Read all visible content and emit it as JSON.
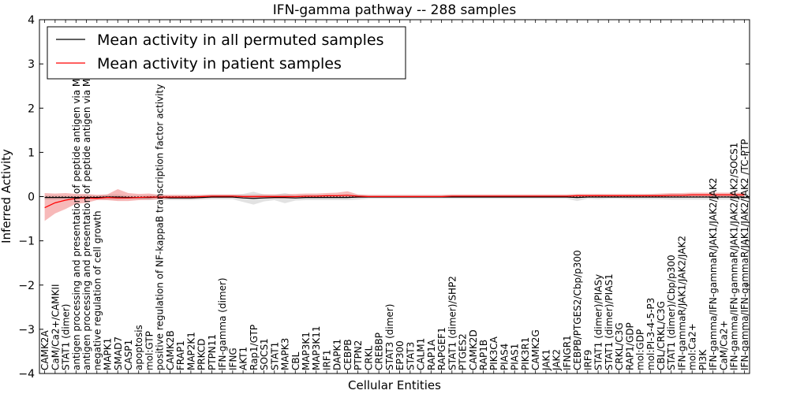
{
  "chart_data": {
    "type": "line",
    "title": "IFN-gamma pathway -- 288 samples",
    "xlabel": "Cellular Entities",
    "ylabel": "Inferred Activity",
    "ylim": [
      -4,
      4
    ],
    "yticks": [
      -4,
      -3,
      -2,
      -1,
      0,
      1,
      2,
      3,
      4
    ],
    "legend_position": "top-left",
    "categories": [
      "CAMK2A",
      "CaM/Ca2+/CAMKII",
      "STAT1 (dimer)",
      "antigen processing and presentation of peptide antigen via MHC class I",
      "antigen processing and presentation of peptide antigen via MHC class II",
      "negative regulation of cell growth",
      "MAPK1",
      "SMAD7",
      "CASP1",
      "apoptosis",
      "mol:GTP",
      "positive regulation of NF-kappaB transcription factor activity",
      "CAMK2B",
      "FRAP1",
      "MAP2K1",
      "PRKCD",
      "PTPN11",
      "IFN-gamma (dimer)",
      "IFNG",
      "AKT1",
      "Rap1/GTP",
      "SOCS1",
      "STAT1",
      "MAPK3",
      "CBL",
      "MAP3K1",
      "MAP3K11",
      "IRF1",
      "DAPK1",
      "CEBPB",
      "PTPN2",
      "CRKL",
      "CREBBP",
      "STAT3 (dimer)",
      "EP300",
      "STAT3",
      "CALM1",
      "RAP1A",
      "RAPGEF1",
      "STAT1 (dimer)/SHP2",
      "PTGES2",
      "CAMK2D",
      "RAP1B",
      "PIK3CA",
      "PIAS4",
      "PIAS1",
      "PIK3R1",
      "CAMK2G",
      "JAK1",
      "JAK2",
      "IFNGR1",
      "CEBPB/PTGES2/Cbp/p300",
      "IRF9",
      "STAT1 (dimer)/PIASy",
      "STAT1 (dimer)/PIAS1",
      "CRKL/C3G",
      "RAP1/GDP",
      "mol:GDP",
      "mol:PI-3-4-5-P3",
      "CBL/CRKL/C3G",
      "STAT1 (dimer)/Cbp/p300",
      "IFN-gammaR/JAK1/JAK2/JAK2",
      "mol:Ca2+",
      "PI3K",
      "IFN-gamma/IFN-gammaR/JAK1/JAK2/JAK2",
      "CaM/Ca2+",
      "IFN-gamma/IFN-gammaR/JAK1/JAK2/JAK2/SOCS1",
      "IFN-gamma/IFN-gammaR/JAK1/JAK2/JAK2 /TC-PTP"
    ],
    "series": [
      {
        "name": "Mean activity in all permuted samples",
        "color": "#000000",
        "values": [
          -0.02,
          -0.02,
          -0.02,
          -0.02,
          -0.02,
          -0.02,
          -0.01,
          -0.01,
          -0.02,
          -0.02,
          -0.02,
          -0.01,
          -0.03,
          -0.03,
          -0.03,
          -0.02,
          -0.01,
          -0.01,
          -0.01,
          -0.03,
          -0.04,
          -0.03,
          -0.02,
          -0.02,
          -0.03,
          -0.02,
          -0.02,
          -0.02,
          -0.02,
          -0.02,
          -0.01,
          -0.01,
          -0.01,
          -0.01,
          -0.01,
          -0.01,
          -0.01,
          -0.01,
          -0.01,
          -0.01,
          -0.01,
          -0.01,
          -0.01,
          -0.01,
          -0.01,
          -0.01,
          -0.01,
          -0.01,
          -0.01,
          -0.01,
          -0.01,
          -0.02,
          -0.01,
          -0.01,
          -0.01,
          -0.01,
          -0.01,
          -0.01,
          -0.01,
          -0.01,
          -0.01,
          -0.01,
          -0.01,
          -0.01,
          -0.01,
          -0.01,
          -0.01,
          -0.01
        ],
        "band_lower": [
          -0.07,
          -0.07,
          -0.06,
          -0.06,
          -0.07,
          -0.06,
          -0.07,
          -0.07,
          -0.06,
          -0.06,
          -0.08,
          -0.06,
          -0.08,
          -0.08,
          -0.08,
          -0.07,
          -0.06,
          -0.06,
          -0.06,
          -0.12,
          -0.18,
          -0.11,
          -0.08,
          -0.15,
          -0.09,
          -0.08,
          -0.08,
          -0.08,
          -0.08,
          -0.08,
          -0.07,
          -0.05,
          -0.05,
          -0.05,
          -0.05,
          -0.05,
          -0.05,
          -0.05,
          -0.05,
          -0.05,
          -0.05,
          -0.05,
          -0.05,
          -0.05,
          -0.05,
          -0.05,
          -0.05,
          -0.05,
          -0.05,
          -0.05,
          -0.05,
          -0.1,
          -0.05,
          -0.06,
          -0.05,
          -0.05,
          -0.06,
          -0.06,
          -0.06,
          -0.06,
          -0.07,
          -0.07,
          -0.07,
          -0.07,
          -0.07,
          -0.07,
          -0.07,
          -0.07
        ],
        "band_upper": [
          0.03,
          0.03,
          0.02,
          0.02,
          0.03,
          0.02,
          0.05,
          0.05,
          0.02,
          0.02,
          0.03,
          0.04,
          0.02,
          0.02,
          0.02,
          0.03,
          0.04,
          0.04,
          0.04,
          0.06,
          0.11,
          0.05,
          0.04,
          0.08,
          0.03,
          0.04,
          0.04,
          0.04,
          0.04,
          0.05,
          0.04,
          0.03,
          0.03,
          0.03,
          0.03,
          0.03,
          0.03,
          0.03,
          0.03,
          0.03,
          0.03,
          0.03,
          0.03,
          0.03,
          0.03,
          0.03,
          0.03,
          0.03,
          0.03,
          0.03,
          0.03,
          0.04,
          0.03,
          0.04,
          0.03,
          0.03,
          0.04,
          0.04,
          0.05,
          0.05,
          0.05,
          0.05,
          0.05,
          0.05,
          0.05,
          0.05,
          0.05,
          0.05
        ]
      },
      {
        "name": "Mean activity in patient samples",
        "color": "#ff0000",
        "values": [
          -0.25,
          -0.14,
          -0.08,
          -0.04,
          -0.03,
          -0.04,
          -0.02,
          -0.03,
          -0.03,
          -0.02,
          -0.01,
          -0.01,
          -0.01,
          -0.01,
          -0.01,
          0.0,
          0.01,
          0.01,
          0.01,
          0.0,
          0.0,
          0.0,
          0.0,
          0.0,
          0.0,
          0.01,
          0.01,
          0.02,
          0.02,
          0.03,
          0.01,
          0.0,
          0.0,
          0.0,
          0.0,
          0.0,
          0.0,
          0.0,
          0.0,
          0.01,
          0.01,
          0.01,
          0.01,
          0.01,
          0.01,
          0.01,
          0.01,
          0.01,
          0.01,
          0.01,
          0.01,
          0.02,
          0.02,
          0.02,
          0.02,
          0.02,
          0.02,
          0.02,
          0.02,
          0.02,
          0.03,
          0.03,
          0.04,
          0.04,
          0.04,
          0.04,
          0.04,
          0.04
        ],
        "band_lower": [
          -0.55,
          -0.38,
          -0.28,
          -0.16,
          -0.14,
          -0.08,
          -0.08,
          -0.1,
          -0.1,
          -0.08,
          -0.07,
          -0.06,
          -0.05,
          -0.05,
          -0.05,
          -0.04,
          -0.03,
          -0.03,
          -0.03,
          -0.04,
          -0.04,
          -0.04,
          -0.04,
          -0.04,
          -0.04,
          -0.03,
          -0.03,
          -0.03,
          -0.03,
          -0.03,
          -0.03,
          -0.02,
          -0.02,
          -0.02,
          -0.02,
          -0.02,
          -0.02,
          -0.02,
          -0.02,
          -0.02,
          -0.02,
          -0.02,
          -0.02,
          -0.02,
          -0.02,
          -0.02,
          -0.02,
          -0.02,
          -0.02,
          -0.02,
          -0.02,
          -0.02,
          -0.02,
          -0.02,
          -0.02,
          -0.02,
          -0.02,
          -0.02,
          -0.02,
          -0.02,
          -0.02,
          -0.02,
          -0.02,
          -0.02,
          -0.02,
          -0.02,
          -0.02,
          -0.02
        ],
        "band_upper": [
          0.08,
          0.07,
          0.08,
          0.06,
          0.06,
          0.04,
          0.05,
          0.17,
          0.08,
          0.06,
          0.07,
          0.04,
          0.04,
          0.04,
          0.04,
          0.04,
          0.05,
          0.05,
          0.05,
          0.04,
          0.04,
          0.05,
          0.05,
          0.05,
          0.06,
          0.07,
          0.07,
          0.08,
          0.09,
          0.12,
          0.05,
          0.04,
          0.04,
          0.04,
          0.04,
          0.04,
          0.04,
          0.04,
          0.04,
          0.05,
          0.05,
          0.05,
          0.05,
          0.05,
          0.05,
          0.05,
          0.05,
          0.05,
          0.05,
          0.05,
          0.05,
          0.06,
          0.06,
          0.06,
          0.06,
          0.06,
          0.06,
          0.06,
          0.06,
          0.07,
          0.08,
          0.08,
          0.09,
          0.09,
          0.09,
          0.09,
          0.09,
          0.09
        ]
      }
    ]
  }
}
